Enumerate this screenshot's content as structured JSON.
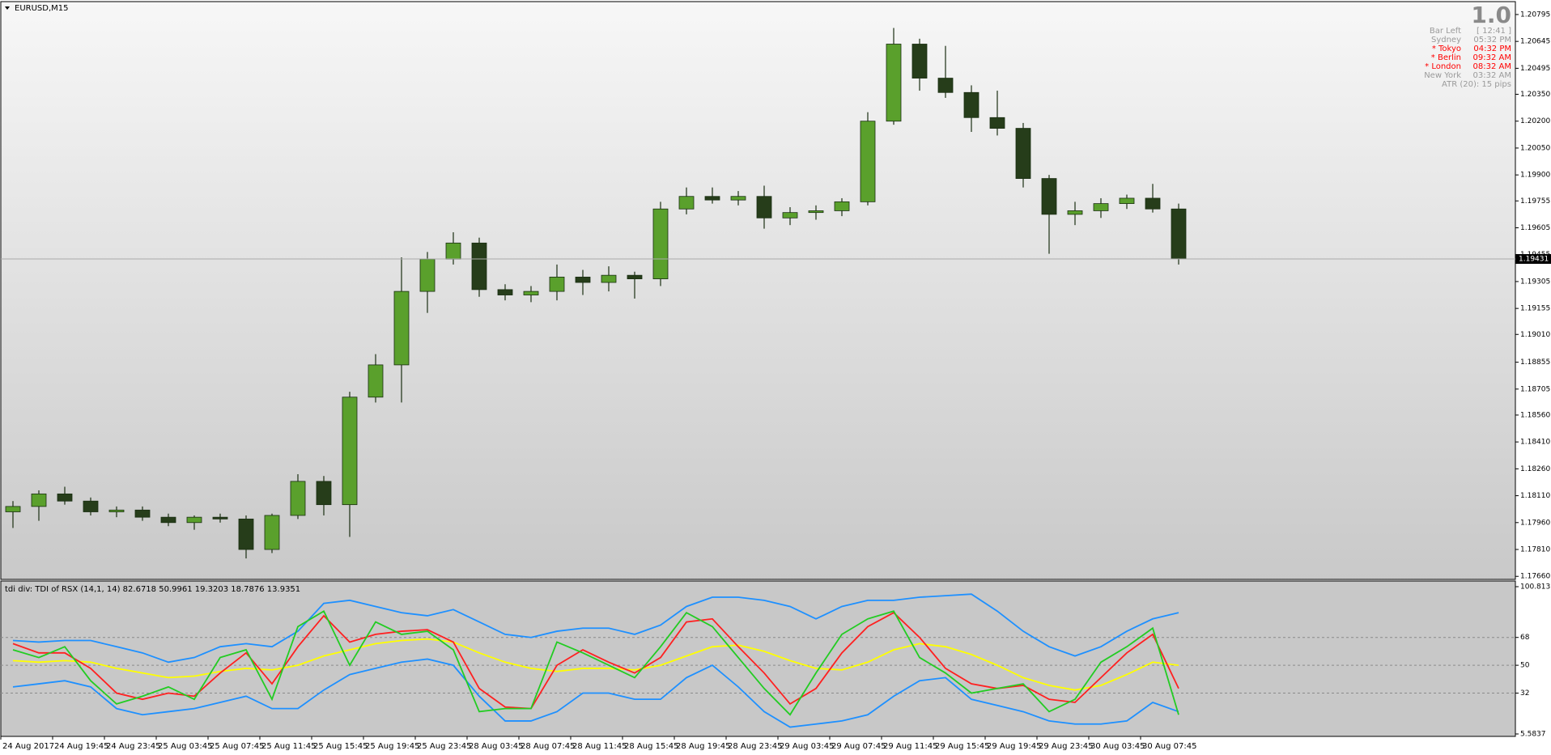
{
  "chart_data": [
    {
      "type": "candlestick",
      "title": "EURUSD,M15",
      "open": [
        1.1802,
        1.1805,
        1.1812,
        1.1808,
        1.1802,
        1.1803,
        1.1799,
        1.1796,
        1.1799,
        1.1798,
        1.1781,
        1.18,
        1.1819,
        1.1806,
        1.1866,
        1.1884,
        1.1925,
        1.1943,
        1.1952,
        1.1926,
        1.1923,
        1.1925,
        1.1933,
        1.193,
        1.1934,
        1.1932,
        1.1971,
        1.1978,
        1.1976,
        1.1978,
        1.1966,
        1.1969,
        1.197,
        1.1975,
        1.202,
        1.2063,
        1.2044,
        1.2036,
        1.2022,
        1.2016,
        1.1988,
        1.1968,
        1.197,
        1.1974,
        1.1977,
        1.1971
      ],
      "high": [
        1.1808,
        1.1814,
        1.1816,
        1.181,
        1.1805,
        1.1805,
        1.1801,
        1.18,
        1.1801,
        1.18,
        1.1801,
        1.1823,
        1.1822,
        1.1869,
        1.189,
        1.1944,
        1.1947,
        1.1958,
        1.1955,
        1.1929,
        1.1928,
        1.194,
        1.1937,
        1.1939,
        1.1936,
        1.1975,
        1.1983,
        1.1983,
        1.1981,
        1.1984,
        1.1972,
        1.1973,
        1.1977,
        1.2025,
        1.2072,
        1.2066,
        1.2062,
        1.204,
        1.2037,
        1.2019,
        1.199,
        1.1975,
        1.1977,
        1.1979,
        1.1985,
        1.1974
      ],
      "low": [
        1.1793,
        1.1797,
        1.1806,
        1.18,
        1.1799,
        1.1797,
        1.1794,
        1.1792,
        1.1796,
        1.1776,
        1.1779,
        1.1798,
        1.18,
        1.1788,
        1.1863,
        1.1863,
        1.1913,
        1.194,
        1.1922,
        1.192,
        1.1919,
        1.192,
        1.1923,
        1.1925,
        1.1921,
        1.1928,
        1.1968,
        1.1974,
        1.1973,
        1.196,
        1.1962,
        1.1965,
        1.1967,
        1.1973,
        1.2018,
        1.2037,
        1.2033,
        1.2014,
        1.2012,
        1.1983,
        1.1946,
        1.1962,
        1.1966,
        1.1971,
        1.1969,
        1.194
      ],
      "close": [
        1.1805,
        1.1812,
        1.1808,
        1.1802,
        1.1803,
        1.1799,
        1.1796,
        1.1799,
        1.1798,
        1.1781,
        1.18,
        1.1819,
        1.1806,
        1.1866,
        1.1884,
        1.1925,
        1.1943,
        1.1952,
        1.1926,
        1.1923,
        1.1925,
        1.1933,
        1.193,
        1.1934,
        1.1932,
        1.1971,
        1.1978,
        1.1976,
        1.1978,
        1.1966,
        1.1969,
        1.197,
        1.1975,
        1.202,
        1.2063,
        1.2044,
        1.2036,
        1.2022,
        1.2016,
        1.1988,
        1.1968,
        1.197,
        1.1974,
        1.1977,
        1.1971,
        1.19431
      ],
      "up_color": "#5aa02c",
      "down_color": "#263d1a",
      "wick_color": "#1a2e12",
      "last_price": 1.19431,
      "ylim": [
        1.17643,
        1.20867
      ],
      "yticks": [
        1.20795,
        1.20645,
        1.20495,
        {
          "value": 1.2035,
          "label": "1.20350"
        },
        {
          "value": 1.202,
          "label": "1.20200"
        },
        {
          "value": 1.2005,
          "label": "1.20050"
        },
        {
          "value": 1.199,
          "label": "1.19900"
        },
        1.19755,
        1.19605,
        1.19455,
        1.19305,
        1.19155,
        {
          "value": 1.1901,
          "label": "1.19010"
        },
        1.18855,
        1.18705,
        {
          "value": 1.1856,
          "label": "1.18560"
        },
        {
          "value": 1.1841,
          "label": "1.18410"
        },
        {
          "value": 1.1826,
          "label": "1.18260"
        },
        {
          "value": 1.1811,
          "label": "1.18110"
        },
        {
          "value": 1.1796,
          "label": "1.17960"
        },
        {
          "value": 1.1781,
          "label": "1.17810"
        },
        {
          "value": 1.1766,
          "label": "1.17660"
        }
      ]
    },
    {
      "type": "line",
      "title": "tdi div: TDI of RSX  (14,1, 14) 82.6718 50.9961 19.3203 18.7876 13.9351",
      "categories": [
        "24 Aug 2017",
        null,
        "24 Aug 19:45",
        null,
        "24 Aug 23:45",
        null,
        "25 Aug 03:45",
        null,
        "25 Aug 07:45",
        null,
        "25 Aug 11:45",
        null,
        "25 Aug 15:45",
        null,
        "25 Aug 19:45",
        null,
        "25 Aug 23:45",
        null,
        "28 Aug 03:45",
        null,
        "28 Aug 07:45",
        null,
        "28 Aug 11:45",
        null,
        "28 Aug 15:45",
        null,
        "28 Aug 19:45",
        null,
        "28 Aug 23:45",
        null,
        "29 Aug 03:45",
        null,
        "29 Aug 07:45",
        null,
        "29 Aug 11:45",
        null,
        "29 Aug 15:45",
        null,
        "29 Aug 19:45",
        null,
        "29 Aug 23:45",
        null,
        "30 Aug 03:45",
        null,
        "30 Aug 07:45",
        null
      ],
      "series": [
        {
          "color": "#1e90ff",
          "values": [
            66,
            65,
            66,
            66,
            62,
            58,
            52,
            55,
            62,
            64,
            62,
            72,
            90,
            92,
            88,
            84,
            82,
            86,
            78,
            70,
            68,
            72,
            74,
            74,
            70,
            76,
            88,
            94,
            94,
            92,
            88,
            80,
            88,
            92,
            92,
            94,
            95,
            96,
            85,
            72,
            62,
            56,
            62,
            72,
            80,
            84
          ]
        },
        {
          "color": "#1e90ff",
          "values": [
            36,
            38,
            40,
            36,
            22,
            18,
            20,
            22,
            26,
            30,
            22,
            22,
            34,
            44,
            48,
            52,
            54,
            50,
            30,
            14,
            14,
            20,
            32,
            32,
            28,
            28,
            42,
            50,
            36,
            20,
            10,
            12,
            14,
            18,
            30,
            40,
            42,
            28,
            24,
            20,
            14,
            12,
            12,
            14,
            26,
            20
          ]
        },
        {
          "color": "#ffff00",
          "values": [
            53,
            52,
            53,
            52,
            48,
            45,
            42,
            43,
            46,
            48,
            47,
            50,
            56,
            60,
            64,
            66,
            67,
            65,
            58,
            52,
            48,
            46,
            48,
            48,
            47,
            50,
            56,
            62,
            63,
            59,
            53,
            48,
            47,
            52,
            60,
            64,
            62,
            57,
            50,
            42,
            37,
            34,
            37,
            44,
            52,
            50
          ]
        },
        {
          "color": "#ff2020",
          "values": [
            64,
            58,
            58,
            48,
            32,
            28,
            32,
            30,
            45,
            58,
            38,
            62,
            82,
            65,
            70,
            72,
            73,
            65,
            35,
            23,
            22,
            50,
            60,
            52,
            45,
            55,
            78,
            80,
            62,
            45,
            25,
            35,
            58,
            75,
            84,
            68,
            48,
            38,
            35,
            37,
            28,
            26,
            42,
            58,
            70,
            35
          ]
        },
        {
          "color": "#22cc22",
          "values": [
            60,
            55,
            62,
            40,
            25,
            30,
            36,
            28,
            55,
            60,
            28,
            75,
            85,
            50,
            78,
            70,
            72,
            60,
            20,
            22,
            22,
            65,
            58,
            50,
            42,
            62,
            84,
            75,
            55,
            35,
            18,
            45,
            70,
            80,
            85,
            55,
            45,
            32,
            35,
            38,
            20,
            28,
            52,
            62,
            74,
            18
          ]
        }
      ],
      "ylim": [
        5.5837,
        100.8131
      ],
      "yticks": [
        100.8131,
        68,
        50,
        32,
        5.5837
      ]
    }
  ],
  "info_panel": {
    "big": "1.0",
    "rows": [
      {
        "label": "Bar Left",
        "value": "[ 12:41 ]",
        "color": "#9a9a9a"
      },
      {
        "label": "Sydney",
        "value": "05:32 PM",
        "color": "#9a9a9a"
      },
      {
        "label": "* Tokyo",
        "value": "04:32 PM",
        "color": "#ff0000"
      },
      {
        "label": "* Berlin",
        "value": "09:32 AM",
        "color": "#ff0000"
      },
      {
        "label": "* London",
        "value": "08:32 AM",
        "color": "#ff0000"
      },
      {
        "label": "New York",
        "value": "03:32 AM",
        "color": "#9a9a9a"
      }
    ],
    "atr": "ATR (20): 15 pips"
  }
}
